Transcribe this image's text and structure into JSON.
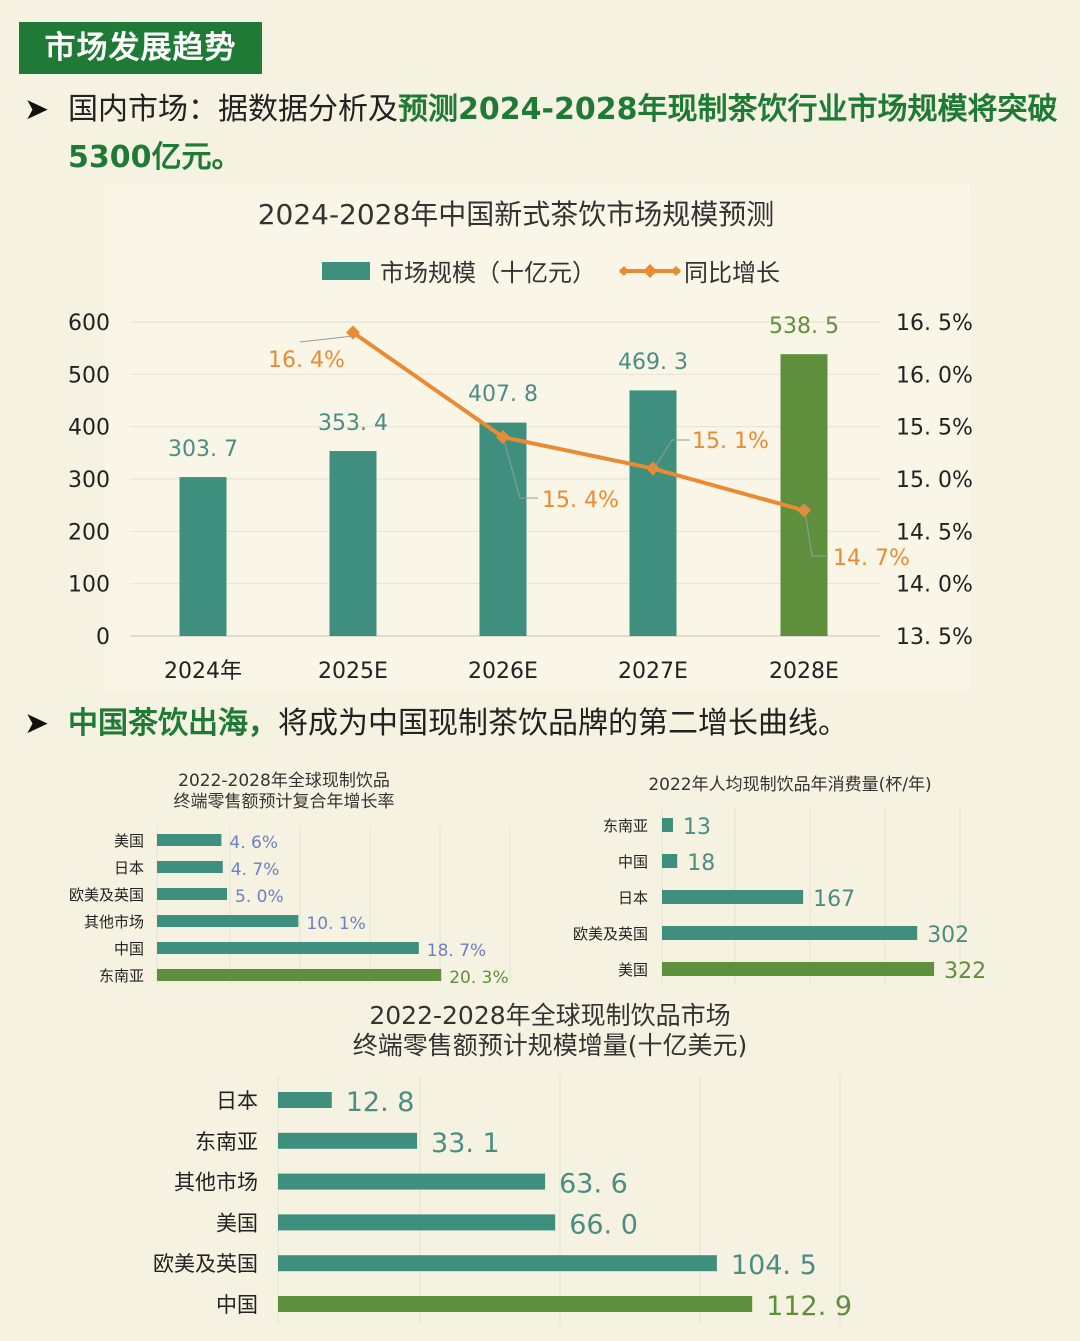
{
  "section_tag": "市场发展趋势",
  "intro": {
    "bullet": "➤",
    "prefix": "国内市场：据数据分析及",
    "highlight_line1": "预测2024-2028年现制茶饮行业市场规模将突破",
    "highlight_line2": "5300亿元。"
  },
  "second": {
    "bullet": "➤",
    "highlight": "中国茶饮出海，",
    "rest": "将成为中国现制茶饮品牌的第二增长曲线。"
  },
  "colors": {
    "teal": "#3f8f7f",
    "green": "#5e8f3c",
    "orange": "#e98b33",
    "label_teal": "#4c8d83",
    "label_blue": "#6b7fc6"
  },
  "chart_data": [
    {
      "type": "bar",
      "title": "2024-2028年中国新式茶饮市场规模预测",
      "categories": [
        "2024年",
        "2025E",
        "2026E",
        "2027E",
        "2028E"
      ],
      "series": [
        {
          "name": "市场规模（十亿元）",
          "values": [
            303.7,
            353.4,
            407.8,
            469.3,
            538.5
          ],
          "axis": "left",
          "type": "bar"
        },
        {
          "name": "同比增长",
          "values": [
            null,
            16.4,
            15.4,
            15.1,
            14.7
          ],
          "axis": "right",
          "type": "line",
          "unit": "%"
        }
      ],
      "value_labels": [
        "303. 7",
        "353. 4",
        "407. 8",
        "469. 3",
        "538. 5"
      ],
      "growth_labels": [
        "16. 4%",
        "15. 4%",
        "15. 1%",
        "14. 7%"
      ],
      "ylim": [
        0,
        600
      ],
      "y_ticks": [
        "0",
        "100",
        "200",
        "300",
        "400",
        "500",
        "600"
      ],
      "y2lim": [
        13.5,
        16.5
      ],
      "y2_ticks": [
        "13. 5%",
        "14. 0%",
        "14. 5%",
        "15. 0%",
        "15. 5%",
        "16. 0%",
        "16. 5%"
      ],
      "legend_position": "top-center",
      "grid": true
    },
    {
      "type": "bar",
      "orientation": "horizontal",
      "title": "2022-2028年全球现制饮品终端零售额预计复合年增长率",
      "title_lines": [
        "2022-2028年全球现制饮品",
        "终端零售额预计复合年增长率"
      ],
      "categories": [
        "美国",
        "日本",
        "欧美及英国",
        "其他市场",
        "中国",
        "东南亚"
      ],
      "values": [
        4.6,
        4.7,
        5.0,
        10.1,
        18.7,
        20.3
      ],
      "value_labels": [
        "4. 6%",
        "4. 7%",
        "5. 0%",
        "10. 1%",
        "18. 7%",
        "20. 3%"
      ],
      "unit": "%",
      "highlight": "东南亚",
      "grid": true
    },
    {
      "type": "bar",
      "orientation": "horizontal",
      "title": "2022年人均现制饮品年消费量(杯/年)",
      "categories": [
        "东南亚",
        "中国",
        "日本",
        "欧美及英国",
        "美国"
      ],
      "values": [
        13,
        18,
        167,
        302,
        322
      ],
      "value_labels": [
        "13",
        "18",
        "167",
        "302",
        "322"
      ],
      "highlight": "美国",
      "grid": true
    },
    {
      "type": "bar",
      "orientation": "horizontal",
      "title": "2022-2028年全球现制饮品市场终端零售额预计规模增量(十亿美元)",
      "title_lines": [
        "2022-2028年全球现制饮品市场",
        "终端零售额预计规模增量(十亿美元)"
      ],
      "categories": [
        "日本",
        "东南亚",
        "其他市场",
        "美国",
        "欧美及英国",
        "中国"
      ],
      "values": [
        12.8,
        33.1,
        63.6,
        66.0,
        104.5,
        112.9
      ],
      "value_labels": [
        "12. 8",
        "33. 1",
        "63. 6",
        "66. 0",
        "104. 5",
        "112. 9"
      ],
      "highlight": "中国",
      "grid": true
    }
  ]
}
